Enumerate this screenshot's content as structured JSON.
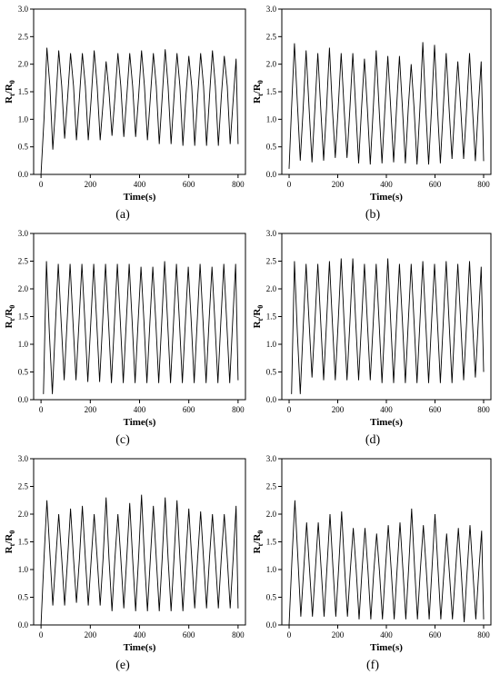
{
  "figure": {
    "panels": [
      {
        "caption": "(a)"
      },
      {
        "caption": "(b)"
      },
      {
        "caption": "(c)"
      },
      {
        "caption": "(d)"
      },
      {
        "caption": "(e)"
      },
      {
        "caption": "(f)"
      }
    ]
  },
  "chart_data": [
    {
      "type": "line",
      "panel": "a",
      "xlabel": "Time(s)",
      "ylabel": "Rt/R0",
      "xlim": [
        -30,
        830
      ],
      "ylim": [
        0,
        3.0
      ],
      "xticks": [
        0,
        200,
        400,
        600,
        800
      ],
      "yticks": [
        0.0,
        0.5,
        1.0,
        1.5,
        2.0,
        2.5,
        3.0
      ],
      "grid": false,
      "series": [
        {
          "x": [
            0,
            12,
            24,
            36,
            48,
            60,
            72,
            84,
            96,
            108,
            120,
            132,
            144,
            156,
            168,
            180,
            192,
            204,
            216,
            228,
            240,
            252,
            264,
            276,
            288,
            300,
            312,
            324,
            336,
            348,
            360,
            372,
            384,
            396,
            408,
            420,
            432,
            444,
            456,
            468,
            480,
            492,
            504,
            516,
            528,
            540,
            552,
            564,
            576,
            588,
            600,
            612,
            624,
            636,
            648,
            660,
            672,
            684,
            696,
            708,
            720,
            732,
            744,
            756,
            768,
            780,
            792,
            800
          ],
          "y": [
            0.0,
            1.0,
            2.3,
            1.6,
            0.45,
            1.3,
            2.25,
            1.6,
            0.65,
            1.4,
            2.2,
            1.6,
            0.62,
            1.4,
            2.2,
            1.6,
            0.62,
            1.4,
            2.25,
            1.6,
            0.62,
            1.3,
            2.05,
            1.5,
            0.7,
            1.4,
            2.2,
            1.6,
            0.68,
            1.4,
            2.2,
            1.6,
            0.68,
            1.4,
            2.25,
            1.6,
            0.62,
            1.4,
            2.2,
            1.6,
            0.55,
            1.4,
            2.27,
            1.6,
            0.55,
            1.4,
            2.2,
            1.6,
            0.52,
            1.4,
            2.15,
            1.6,
            0.52,
            1.4,
            2.2,
            1.6,
            0.52,
            1.4,
            2.25,
            1.6,
            0.52,
            1.4,
            2.15,
            1.6,
            0.55,
            1.35,
            2.1,
            0.55
          ]
        }
      ]
    },
    {
      "type": "line",
      "panel": "b",
      "xlabel": "Time(s)",
      "ylabel": "Rt/R0",
      "xlim": [
        -30,
        830
      ],
      "ylim": [
        0,
        3.0
      ],
      "xticks": [
        0,
        200,
        400,
        600,
        800
      ],
      "yticks": [
        0.0,
        0.5,
        1.0,
        1.5,
        2.0,
        2.5,
        3.0
      ],
      "grid": false,
      "series": [
        {
          "x": [
            0,
            10,
            22,
            34,
            46,
            58,
            70,
            82,
            94,
            106,
            118,
            130,
            142,
            154,
            166,
            178,
            190,
            202,
            214,
            226,
            238,
            250,
            262,
            274,
            286,
            298,
            310,
            322,
            334,
            346,
            358,
            370,
            382,
            394,
            406,
            418,
            430,
            442,
            454,
            466,
            478,
            490,
            502,
            514,
            526,
            538,
            550,
            562,
            574,
            586,
            598,
            610,
            622,
            634,
            646,
            658,
            670,
            682,
            694,
            706,
            718,
            730,
            742,
            754,
            766,
            778,
            790,
            800
          ],
          "y": [
            0.1,
            1.2,
            2.38,
            1.3,
            0.25,
            1.2,
            2.25,
            1.2,
            0.22,
            1.2,
            2.2,
            1.2,
            0.25,
            1.2,
            2.3,
            1.2,
            0.3,
            1.2,
            2.2,
            1.2,
            0.3,
            1.2,
            2.2,
            1.2,
            0.2,
            1.2,
            2.1,
            1.2,
            0.18,
            1.2,
            2.25,
            1.2,
            0.2,
            1.2,
            2.15,
            1.2,
            0.22,
            1.2,
            2.15,
            1.2,
            0.2,
            1.2,
            2.0,
            1.2,
            0.18,
            1.2,
            2.4,
            1.2,
            0.18,
            1.2,
            2.35,
            1.2,
            0.2,
            1.2,
            2.2,
            1.2,
            0.28,
            1.2,
            2.05,
            1.2,
            0.28,
            1.2,
            2.2,
            1.2,
            0.24,
            1.2,
            2.05,
            0.24
          ]
        }
      ]
    },
    {
      "type": "line",
      "panel": "c",
      "xlabel": "Time(s)",
      "ylabel": "Rt/R0",
      "xlim": [
        -30,
        830
      ],
      "ylim": [
        0,
        3.0
      ],
      "xticks": [
        0,
        200,
        400,
        600,
        800
      ],
      "yticks": [
        0.0,
        0.5,
        1.0,
        1.5,
        2.0,
        2.5,
        3.0
      ],
      "grid": false,
      "series": [
        {
          "x": [
            10,
            22,
            34,
            46,
            58,
            70,
            82,
            94,
            106,
            118,
            130,
            142,
            154,
            166,
            178,
            190,
            202,
            214,
            226,
            238,
            250,
            262,
            274,
            286,
            298,
            310,
            322,
            334,
            346,
            358,
            370,
            382,
            394,
            406,
            418,
            430,
            442,
            454,
            466,
            478,
            490,
            502,
            514,
            526,
            538,
            550,
            562,
            574,
            586,
            598,
            610,
            622,
            634,
            646,
            658,
            670,
            682,
            694,
            706,
            718,
            730,
            742,
            754,
            766,
            778,
            790,
            800
          ],
          "y": [
            0.1,
            2.5,
            1.2,
            0.1,
            1.3,
            2.45,
            1.4,
            0.35,
            1.4,
            2.45,
            1.4,
            0.35,
            1.4,
            2.45,
            1.4,
            0.32,
            1.4,
            2.45,
            1.4,
            0.32,
            1.4,
            2.45,
            1.4,
            0.3,
            1.4,
            2.45,
            1.4,
            0.3,
            1.4,
            2.45,
            1.4,
            0.3,
            1.4,
            2.4,
            1.4,
            0.3,
            1.4,
            2.4,
            1.4,
            0.3,
            1.4,
            2.5,
            1.4,
            0.3,
            1.4,
            2.45,
            1.4,
            0.3,
            1.4,
            2.4,
            1.4,
            0.3,
            1.4,
            2.45,
            1.4,
            0.3,
            1.4,
            2.4,
            1.4,
            0.3,
            1.4,
            2.45,
            1.4,
            0.3,
            1.4,
            2.45,
            0.35
          ]
        }
      ]
    },
    {
      "type": "line",
      "panel": "d",
      "xlabel": "Time(s)",
      "ylabel": "Rt/R0",
      "xlim": [
        -30,
        830
      ],
      "ylim": [
        0,
        3.0
      ],
      "xticks": [
        0,
        200,
        400,
        600,
        800
      ],
      "yticks": [
        0.0,
        0.5,
        1.0,
        1.5,
        2.0,
        2.5,
        3.0
      ],
      "grid": false,
      "series": [
        {
          "x": [
            10,
            22,
            34,
            46,
            58,
            70,
            82,
            94,
            106,
            118,
            130,
            142,
            154,
            166,
            178,
            190,
            202,
            214,
            226,
            238,
            250,
            262,
            274,
            286,
            298,
            310,
            322,
            334,
            346,
            358,
            370,
            382,
            394,
            406,
            418,
            430,
            442,
            454,
            466,
            478,
            490,
            502,
            514,
            526,
            538,
            550,
            562,
            574,
            586,
            598,
            610,
            622,
            634,
            646,
            658,
            670,
            682,
            694,
            706,
            718,
            730,
            742,
            754,
            766,
            778,
            790,
            800
          ],
          "y": [
            0.1,
            2.5,
            1.2,
            0.1,
            1.3,
            2.45,
            1.4,
            0.4,
            1.4,
            2.45,
            1.4,
            0.35,
            1.4,
            2.5,
            1.4,
            0.35,
            1.4,
            2.55,
            1.4,
            0.35,
            1.4,
            2.55,
            1.4,
            0.35,
            1.4,
            2.45,
            1.4,
            0.35,
            1.4,
            2.45,
            1.4,
            0.3,
            1.4,
            2.55,
            1.4,
            0.3,
            1.4,
            2.45,
            1.4,
            0.3,
            1.4,
            2.45,
            1.4,
            0.3,
            1.4,
            2.5,
            1.4,
            0.3,
            1.4,
            2.45,
            1.4,
            0.3,
            1.4,
            2.5,
            1.4,
            0.3,
            1.4,
            2.45,
            1.4,
            0.35,
            1.4,
            2.5,
            1.4,
            0.4,
            1.4,
            2.4,
            0.5
          ]
        }
      ]
    },
    {
      "type": "line",
      "panel": "e",
      "xlabel": "Time(s)",
      "ylabel": "Rt/R0",
      "xlim": [
        -30,
        830
      ],
      "ylim": [
        0,
        3.0
      ],
      "xticks": [
        0,
        200,
        400,
        600,
        800
      ],
      "yticks": [
        0.0,
        0.5,
        1.0,
        1.5,
        2.0,
        2.5,
        3.0
      ],
      "grid": false,
      "series": [
        {
          "x": [
            0,
            12,
            24,
            36,
            48,
            60,
            72,
            84,
            96,
            108,
            120,
            132,
            144,
            156,
            168,
            180,
            192,
            204,
            216,
            228,
            240,
            252,
            264,
            276,
            288,
            300,
            312,
            324,
            336,
            348,
            360,
            372,
            384,
            396,
            408,
            420,
            432,
            444,
            456,
            468,
            480,
            492,
            504,
            516,
            528,
            540,
            552,
            564,
            576,
            588,
            600,
            612,
            624,
            636,
            648,
            660,
            672,
            684,
            696,
            708,
            720,
            732,
            744,
            756,
            768,
            780,
            792,
            800
          ],
          "y": [
            0.0,
            1.2,
            2.25,
            1.3,
            0.35,
            1.2,
            2.0,
            1.2,
            0.35,
            1.2,
            2.1,
            1.2,
            0.4,
            1.2,
            2.15,
            1.2,
            0.35,
            1.2,
            2.0,
            1.2,
            0.35,
            1.2,
            2.3,
            1.2,
            0.25,
            1.2,
            2.0,
            1.2,
            0.3,
            1.2,
            2.2,
            1.2,
            0.25,
            1.2,
            2.35,
            1.2,
            0.25,
            1.2,
            2.15,
            1.2,
            0.25,
            1.2,
            2.3,
            1.2,
            0.25,
            1.2,
            2.25,
            1.2,
            0.25,
            1.2,
            2.1,
            1.2,
            0.3,
            1.2,
            2.05,
            1.2,
            0.3,
            1.2,
            2.0,
            1.2,
            0.3,
            1.2,
            2.0,
            1.2,
            0.3,
            1.2,
            2.15,
            0.3
          ]
        }
      ]
    },
    {
      "type": "line",
      "panel": "f",
      "xlabel": "Time(s)",
      "ylabel": "Rt/R0",
      "xlim": [
        -30,
        830
      ],
      "ylim": [
        0,
        3.0
      ],
      "xticks": [
        0,
        200,
        400,
        600,
        800
      ],
      "yticks": [
        0.0,
        0.5,
        1.0,
        1.5,
        2.0,
        2.5,
        3.0
      ],
      "grid": false,
      "series": [
        {
          "x": [
            0,
            12,
            24,
            36,
            48,
            60,
            72,
            84,
            96,
            108,
            120,
            132,
            144,
            156,
            168,
            180,
            192,
            204,
            216,
            228,
            240,
            252,
            264,
            276,
            288,
            300,
            312,
            324,
            336,
            348,
            360,
            372,
            384,
            396,
            408,
            420,
            432,
            444,
            456,
            468,
            480,
            492,
            504,
            516,
            528,
            540,
            552,
            564,
            576,
            588,
            600,
            612,
            624,
            636,
            648,
            660,
            672,
            684,
            696,
            708,
            720,
            732,
            744,
            756,
            768,
            780,
            792,
            800
          ],
          "y": [
            0.0,
            1.2,
            2.25,
            1.2,
            0.15,
            1.0,
            1.85,
            1.0,
            0.15,
            1.0,
            1.85,
            1.0,
            0.15,
            1.05,
            2.0,
            1.05,
            0.15,
            1.05,
            2.05,
            1.05,
            0.15,
            1.0,
            1.75,
            1.0,
            0.1,
            1.0,
            1.75,
            1.0,
            0.1,
            0.95,
            1.65,
            0.95,
            0.1,
            1.0,
            1.8,
            1.0,
            0.1,
            1.0,
            1.85,
            1.0,
            0.1,
            1.05,
            2.1,
            1.05,
            0.1,
            1.0,
            1.8,
            1.0,
            0.1,
            1.05,
            2.0,
            1.05,
            0.1,
            0.9,
            1.65,
            0.9,
            0.1,
            0.95,
            1.75,
            0.95,
            0.05,
            0.95,
            1.8,
            0.95,
            0.1,
            0.95,
            1.7,
            0.1
          ]
        }
      ]
    }
  ]
}
